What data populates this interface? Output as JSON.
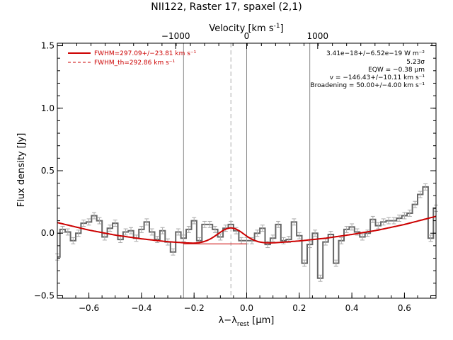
{
  "chart_data": {
    "type": "line",
    "title": "NII122, Raster 17, spaxel (2,1)",
    "xlabel": "λ−λ_rest [μm]",
    "xlabel_parts": {
      "pre": "λ−λ",
      "sub": "rest",
      "post": " [μm]"
    },
    "ylabel": "Flux density [Jy]",
    "top_axis_label": "Velocity [km s⁻¹]",
    "top_axis_parts": {
      "pre": "Velocity [km s",
      "sup": "-1",
      "post": "]"
    },
    "xlim": [
      -0.72,
      0.72
    ],
    "ylim": [
      -0.52,
      1.52
    ],
    "x_ticks": [
      -0.6,
      -0.4,
      -0.2,
      0.0,
      0.2,
      0.4,
      0.6
    ],
    "x_tick_labels": [
      "−0.6",
      "−0.4",
      "−0.2",
      "0.0",
      "0.2",
      "0.4",
      "0.6"
    ],
    "y_ticks": [
      -0.5,
      0.0,
      0.5,
      1.0,
      1.5
    ],
    "y_tick_labels": [
      "−0.5",
      "0.0",
      "0.5",
      "1.0",
      "1.5"
    ],
    "top_ticks_um": [
      -0.27,
      0.0,
      0.27
    ],
    "top_tick_labels": [
      "−1000",
      "0",
      "1000"
    ],
    "vlines_solid": [
      -0.24,
      0.0,
      0.24
    ],
    "vline_dashed": -0.06,
    "legend": [
      {
        "label": "FWHM=297.09+/−23.81 km s⁻¹",
        "style": "solid",
        "color": "#cc0000"
      },
      {
        "label": "FWHM_th=292.86 km s⁻¹",
        "style": "dashed",
        "color": "#cc0000"
      }
    ],
    "annotations": [
      "3.41e−18+/−6.52e−19 W m⁻²",
      "5.23σ",
      "EQW = −0.38 μm",
      "v = −146.43+/−10.11 km s⁻¹",
      "Broadening = 50.00+/−4.00 km s⁻¹"
    ],
    "spectrum_x": [
      -0.72,
      -0.7,
      -0.68,
      -0.66,
      -0.64,
      -0.62,
      -0.6,
      -0.58,
      -0.56,
      -0.54,
      -0.52,
      -0.5,
      -0.48,
      -0.46,
      -0.44,
      -0.42,
      -0.4,
      -0.38,
      -0.36,
      -0.34,
      -0.32,
      -0.3,
      -0.28,
      -0.26,
      -0.24,
      -0.22,
      -0.2,
      -0.18,
      -0.16,
      -0.14,
      -0.12,
      -0.1,
      -0.08,
      -0.06,
      -0.04,
      -0.02,
      0.0,
      0.02,
      0.04,
      0.06,
      0.08,
      0.1,
      0.12,
      0.14,
      0.16,
      0.18,
      0.2,
      0.22,
      0.24,
      0.26,
      0.28,
      0.3,
      0.32,
      0.34,
      0.36,
      0.38,
      0.4,
      0.42,
      0.44,
      0.46,
      0.48,
      0.5,
      0.52,
      0.54,
      0.56,
      0.58,
      0.6,
      0.62,
      0.64,
      0.66,
      0.68,
      0.7,
      0.72
    ],
    "spectrum_y": [
      -0.19,
      0.03,
      0.01,
      -0.06,
      0.0,
      0.08,
      0.09,
      0.14,
      0.1,
      -0.03,
      0.04,
      0.08,
      -0.05,
      0.01,
      0.02,
      -0.04,
      0.03,
      0.09,
      0.01,
      -0.05,
      0.02,
      -0.07,
      -0.15,
      0.01,
      -0.04,
      0.03,
      0.1,
      -0.06,
      0.07,
      0.07,
      0.03,
      -0.03,
      0.04,
      0.07,
      0.02,
      -0.06,
      -0.06,
      -0.06,
      0.0,
      0.04,
      -0.09,
      -0.04,
      0.07,
      -0.06,
      -0.05,
      0.09,
      -0.02,
      -0.24,
      -0.09,
      0.0,
      -0.36,
      -0.07,
      -0.01,
      -0.24,
      -0.06,
      0.03,
      0.05,
      0.01,
      -0.03,
      0.0,
      0.11,
      0.06,
      0.09,
      0.1,
      0.1,
      0.12,
      0.14,
      0.16,
      0.23,
      0.31,
      0.37,
      -0.04,
      0.2
    ],
    "spectrum_err": 0.025,
    "fit_continuum": [
      [
        -0.72,
        0.085
      ],
      [
        -0.6,
        0.025
      ],
      [
        -0.5,
        -0.015
      ],
      [
        -0.4,
        -0.045
      ],
      [
        -0.3,
        -0.068
      ],
      [
        -0.2,
        -0.082
      ],
      [
        -0.1,
        -0.088
      ],
      [
        0.0,
        -0.088
      ],
      [
        0.1,
        -0.078
      ],
      [
        0.2,
        -0.062
      ],
      [
        0.3,
        -0.04
      ],
      [
        0.4,
        -0.01
      ],
      [
        0.5,
        0.025
      ],
      [
        0.6,
        0.07
      ],
      [
        0.72,
        0.135
      ]
    ],
    "fit_line": {
      "center": -0.06,
      "amplitude": 0.13,
      "fwhm": 0.12
    },
    "flat_line": {
      "x": [
        -0.24,
        0.0
      ],
      "y": -0.085
    },
    "colors": {
      "spectrum": "#666666",
      "errorbar": "#aaaaaa",
      "fit": "#cc0000",
      "vline": "#888888",
      "vline_dashed": "#aaaaaa"
    }
  }
}
